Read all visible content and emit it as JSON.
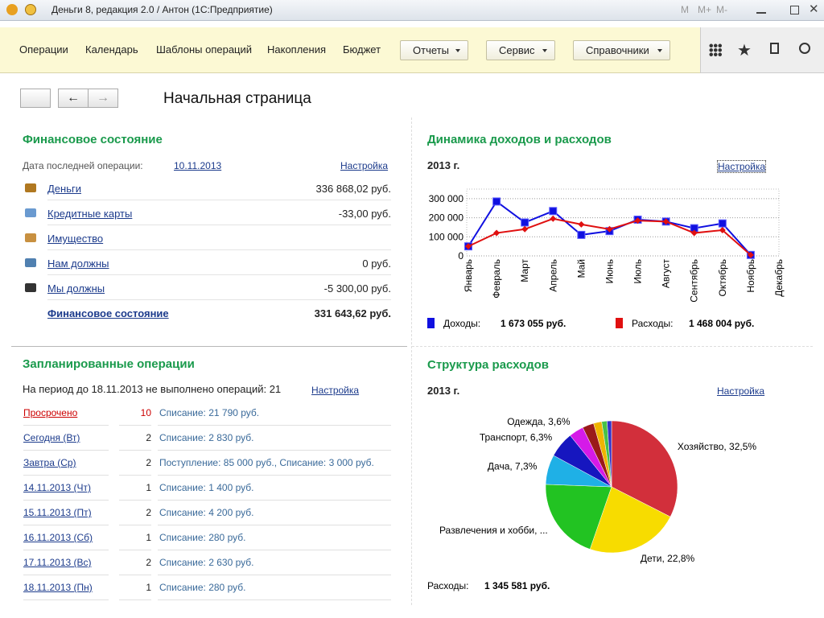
{
  "window": {
    "title": "Деньги 8, редакция 2.0 / Антон  (1С:Предприятие)",
    "memory": [
      "M",
      "M+",
      "M-"
    ]
  },
  "nav": {
    "items": [
      "Операции",
      "Календарь",
      "Шаблоны операций",
      "Накопления",
      "Бюджет"
    ],
    "menus": [
      "Отчеты",
      "Сервис",
      "Справочники"
    ]
  },
  "page_title": "Начальная страница",
  "finance": {
    "title": "Финансовое состояние",
    "last_label": "Дата последней операции:",
    "last_date": "10.11.2013",
    "settings": "Настройка",
    "rows": [
      {
        "label": "Деньги",
        "value": "336 868,02 руб."
      },
      {
        "label": "Кредитные карты",
        "value": "-33,00 руб."
      },
      {
        "label": "Имущество"
      },
      {
        "label": "Нам должны",
        "value": "0 руб."
      },
      {
        "label": "Мы должны",
        "value": "-5 300,00 руб."
      }
    ],
    "total": {
      "label": "Финансовое состояние",
      "value": "331 643,62 руб."
    }
  },
  "planned": {
    "title": "Запланированные операции",
    "summary": "На период до 18.11.2013 не выполнено операций: 21",
    "settings": "Настройка",
    "rows": [
      {
        "label": "Просрочено",
        "count": 10,
        "details": "Списание: 21 790 руб."
      },
      {
        "label": "Сегодня (Вт)",
        "count": 2,
        "details": "Списание: 2 830 руб."
      },
      {
        "label": "Завтра (Ср)",
        "count": 2,
        "details": "Поступление: 85 000 руб., Списание: 3 000 руб."
      },
      {
        "label": "14.11.2013 (Чт)",
        "count": 1,
        "details": "Списание: 1 400 руб."
      },
      {
        "label": "15.11.2013 (Пт)",
        "count": 2,
        "details": "Списание: 4 200 руб."
      },
      {
        "label": "16.11.2013 (Сб)",
        "count": 1,
        "details": "Списание: 280 руб."
      },
      {
        "label": "17.11.2013 (Вс)",
        "count": 2,
        "details": "Списание: 2 630 руб."
      },
      {
        "label": "18.11.2013 (Пн)",
        "count": 1,
        "details": "Списание: 280 руб."
      }
    ]
  },
  "chart_data": [
    {
      "type": "line",
      "title": "Динамика доходов и расходов",
      "subtitle": "2013 г.",
      "settings": "Настройка",
      "categories": [
        "Январь",
        "Февраль",
        "Март",
        "Апрель",
        "Май",
        "Июнь",
        "Июль",
        "Август",
        "Сентябрь",
        "Октябрь",
        "Ноябрь",
        "Декабрь"
      ],
      "series": [
        {
          "name": "Доходы:",
          "color": "#1010e0",
          "total": "1 673 055 руб.",
          "values": [
            50000,
            285000,
            175000,
            235000,
            110000,
            130000,
            190000,
            180000,
            145000,
            170000,
            5000,
            null
          ]
        },
        {
          "name": "Расходы:",
          "color": "#e01010",
          "total": "1 468 004 руб.",
          "values": [
            50000,
            120000,
            140000,
            195000,
            165000,
            140000,
            185000,
            180000,
            120000,
            135000,
            5000,
            null
          ]
        }
      ],
      "ylim": [
        0,
        350000
      ],
      "yticks": [
        0,
        {
          "value": 100000,
          "label": "100 000"
        },
        {
          "value": 200000,
          "label": "200 000"
        },
        {
          "value": 300000,
          "label": "300 000"
        }
      ],
      "grid": true
    },
    {
      "type": "pie",
      "title": "Структура расходов",
      "subtitle": "2013 г.",
      "settings": "Настройка",
      "categories": [
        "Хозяйство",
        "Дети",
        "Развлечения и хобби",
        "Дача",
        "Транспорт",
        "Одежда",
        null,
        null,
        null,
        null
      ],
      "values": [
        32.5,
        22.8,
        20.3,
        7.3,
        6.3,
        3.6,
        2.8,
        2.0,
        1.3,
        1.1
      ],
      "value_labels": [
        "Хозяйство, 32,5%",
        "Дети, 22,8%",
        "Развлечения и хобби, ...",
        "Дача, 7,3%",
        "Транспорт, 6,3%",
        "Одежда, 3,6%",
        null,
        null,
        null,
        null
      ],
      "colors": [
        "#d22f3b",
        "#f7dc00",
        "#22c322",
        "#1fb0e6",
        "#1616bf",
        "#d51ae8",
        "#9a1a1a",
        "#f0b400",
        "#47c147",
        "#3333c8"
      ],
      "total_label": "Расходы:",
      "total": "1 345 581 руб."
    }
  ]
}
